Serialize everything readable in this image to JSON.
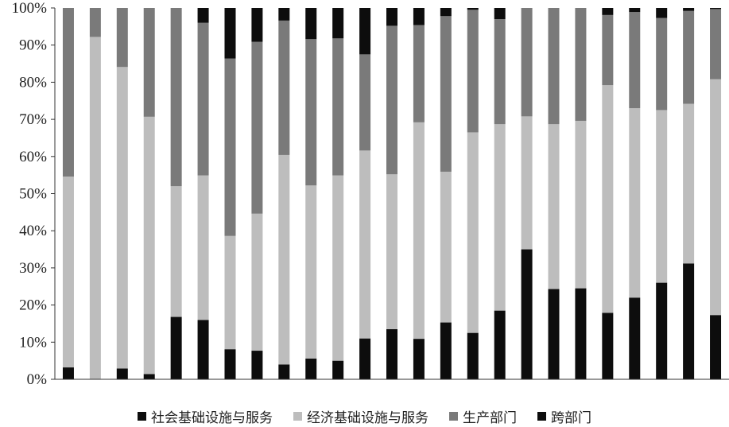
{
  "chart_data": {
    "type": "bar",
    "stacked": true,
    "ylim": [
      0,
      100
    ],
    "yticks": [
      "0%",
      "10%",
      "20%",
      "30%",
      "40%",
      "50%",
      "60%",
      "70%",
      "80%",
      "90%",
      "100%"
    ],
    "categories": 25,
    "grid": false,
    "legend_position": "bottom",
    "series": [
      {
        "name": "社会基础设施与服务",
        "color": "#0d0d0d",
        "values": [
          3.2,
          0.0,
          2.9,
          1.4,
          16.8,
          16.0,
          8.1,
          7.7,
          4.0,
          5.6,
          5.0,
          11.0,
          13.5,
          10.9,
          15.3,
          12.5,
          18.5,
          35.0,
          24.3,
          24.5,
          17.9,
          22.0,
          26.0,
          31.2,
          17.3
        ]
      },
      {
        "name": "经济基础设施与服务",
        "color": "#bdbdbd",
        "values": [
          51.4,
          92.2,
          81.2,
          69.3,
          35.2,
          38.9,
          30.5,
          36.9,
          56.4,
          46.6,
          49.9,
          50.6,
          41.7,
          58.3,
          40.6,
          54.0,
          50.2,
          35.8,
          44.4,
          45.1,
          61.3,
          51.0,
          46.5,
          43.0,
          63.5
        ]
      },
      {
        "name": "生产部门",
        "color": "#7a7a7a",
        "values": [
          45.4,
          7.8,
          15.9,
          29.3,
          48.0,
          41.1,
          47.8,
          46.3,
          36.2,
          39.4,
          36.9,
          25.9,
          40.0,
          26.2,
          41.9,
          33.0,
          28.3,
          29.2,
          31.3,
          30.4,
          18.9,
          25.9,
          24.8,
          25.0,
          18.9
        ]
      },
      {
        "name": "跨部门",
        "color": "#0d0d0d",
        "values": [
          0.0,
          0.0,
          0.0,
          0.0,
          0.0,
          4.0,
          13.6,
          9.1,
          3.4,
          8.4,
          8.2,
          12.5,
          4.8,
          4.6,
          2.2,
          0.5,
          3.0,
          0.0,
          0.0,
          0.0,
          1.9,
          1.1,
          2.7,
          0.8,
          0.3
        ]
      }
    ]
  }
}
